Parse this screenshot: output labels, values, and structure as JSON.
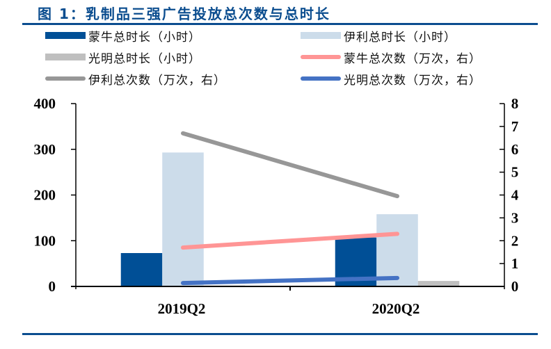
{
  "title": "图 1：乳制品三强广告投放总次数与总时长",
  "colors": {
    "title": "#0b4d8f",
    "rule": "#0b4d8f",
    "mengniu_bar": "#004f96",
    "yili_bar": "#ccdcea",
    "guangming_bar": "#bfbfbf",
    "mengniu_line": "#ff9595",
    "yili_line": "#979797",
    "guangming_line": "#4472c4"
  },
  "legend": [
    {
      "label": "蒙牛总时长（小时）",
      "kind": "bar",
      "color": "#004f96"
    },
    {
      "label": "伊利总时长（小时）",
      "kind": "bar",
      "color": "#ccdcea"
    },
    {
      "label": "光明总时长（小时）",
      "kind": "bar",
      "color": "#bfbfbf"
    },
    {
      "label": "蒙牛总次数（万次，右）",
      "kind": "line",
      "color": "#ff9595"
    },
    {
      "label": "伊利总次数（万次，右）",
      "kind": "line",
      "color": "#979797"
    },
    {
      "label": "光明总次数（万次，右）",
      "kind": "line",
      "color": "#4472c4"
    }
  ],
  "chart_data": {
    "type": "bar+line",
    "title": "图 1：乳制品三强广告投放总次数与总时长",
    "xlabel": "",
    "ylabel": "",
    "categories": [
      "2019Q2",
      "2020Q2"
    ],
    "y_left": {
      "ylim": [
        0,
        400
      ],
      "ticks": [
        "0",
        "100",
        "200",
        "300",
        "400"
      ]
    },
    "y_right": {
      "ylim": [
        0,
        8
      ],
      "ticks": [
        "0",
        "1",
        "2",
        "3",
        "4",
        "5",
        "6",
        "7",
        "8"
      ]
    },
    "grid": false,
    "legend_position": "top",
    "series": [
      {
        "name": "蒙牛总时长（小时）",
        "type": "bar",
        "axis": "left",
        "values": [
          73,
          107
        ]
      },
      {
        "name": "伊利总时长（小时）",
        "type": "bar",
        "axis": "left",
        "values": [
          293,
          158
        ]
      },
      {
        "name": "光明总时长（小时）",
        "type": "bar",
        "axis": "left",
        "values": [
          2,
          12
        ]
      },
      {
        "name": "蒙牛总次数（万次，右）",
        "type": "line",
        "axis": "right",
        "values": [
          1.7,
          2.3
        ]
      },
      {
        "name": "伊利总次数（万次，右）",
        "type": "line",
        "axis": "right",
        "values": [
          6.7,
          3.95
        ]
      },
      {
        "name": "光明总次数（万次，右）",
        "type": "line",
        "axis": "right",
        "values": [
          0.15,
          0.37
        ]
      }
    ]
  }
}
